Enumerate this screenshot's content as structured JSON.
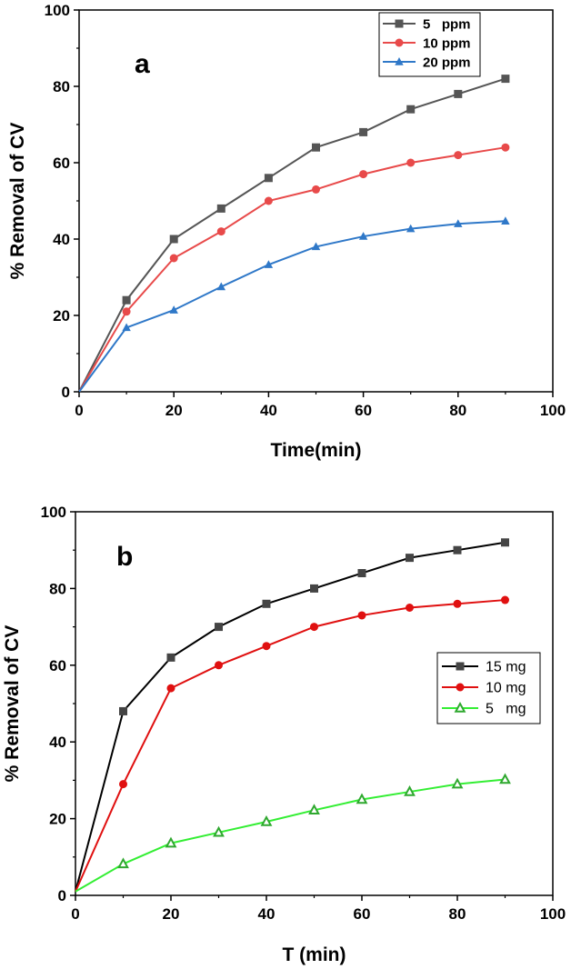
{
  "chart_data": [
    {
      "type": "line",
      "panel_label": "a",
      "xlabel": "Time(min)",
      "ylabel": "% Removal of CV",
      "xlim": [
        0,
        100
      ],
      "ylim": [
        0,
        100
      ],
      "xticks": [
        "0",
        "20",
        "40",
        "60",
        "80",
        "100"
      ],
      "yticks": [
        "0",
        "20",
        "40",
        "60",
        "80",
        "100"
      ],
      "legend_position": "top-right",
      "x": [
        0,
        10,
        20,
        30,
        40,
        50,
        60,
        70,
        80,
        90
      ],
      "series": [
        {
          "name": "5   ppm",
          "color": "#555555",
          "marker": "square",
          "values": [
            0,
            24,
            40,
            48,
            56,
            64,
            68,
            74,
            78,
            82
          ]
        },
        {
          "name": "10 ppm",
          "color": "#e84a4a",
          "marker": "circle",
          "values": [
            0,
            21,
            35,
            42,
            50,
            53,
            57,
            60,
            62,
            64
          ]
        },
        {
          "name": "20 ppm",
          "color": "#2f78c8",
          "marker": "triangle",
          "values": [
            0,
            16.8,
            21.4,
            27.5,
            33.3,
            38,
            40.7,
            42.7,
            44,
            44.7
          ]
        }
      ]
    },
    {
      "type": "line",
      "panel_label": "b",
      "xlabel": "T (min)",
      "ylabel": "% Removal of CV",
      "xlim": [
        0,
        100
      ],
      "ylim": [
        0,
        100
      ],
      "xticks": [
        "0",
        "20",
        "40",
        "60",
        "80",
        "100"
      ],
      "yticks": [
        "0",
        "20",
        "40",
        "60",
        "80",
        "100"
      ],
      "legend_position": "right",
      "x": [
        0,
        10,
        20,
        30,
        40,
        50,
        60,
        70,
        80,
        90
      ],
      "series": [
        {
          "name": "15 mg",
          "color": "#000000",
          "marker_color": "#444444",
          "marker": "square",
          "values": [
            1,
            48,
            62,
            70,
            76,
            80,
            84,
            88,
            90,
            92
          ]
        },
        {
          "name": "10 mg",
          "color": "#e01010",
          "marker_color": "#e01010",
          "marker": "circle",
          "values": [
            1,
            29,
            54,
            60,
            65,
            70,
            73,
            75,
            76,
            77
          ]
        },
        {
          "name": "5   mg",
          "color": "#33ee33",
          "marker_color": "#2fa82f",
          "marker": "triangle-open",
          "values": [
            1,
            8.2,
            13.6,
            16.4,
            19.2,
            22.2,
            25,
            27,
            29,
            30.2
          ]
        }
      ]
    }
  ]
}
